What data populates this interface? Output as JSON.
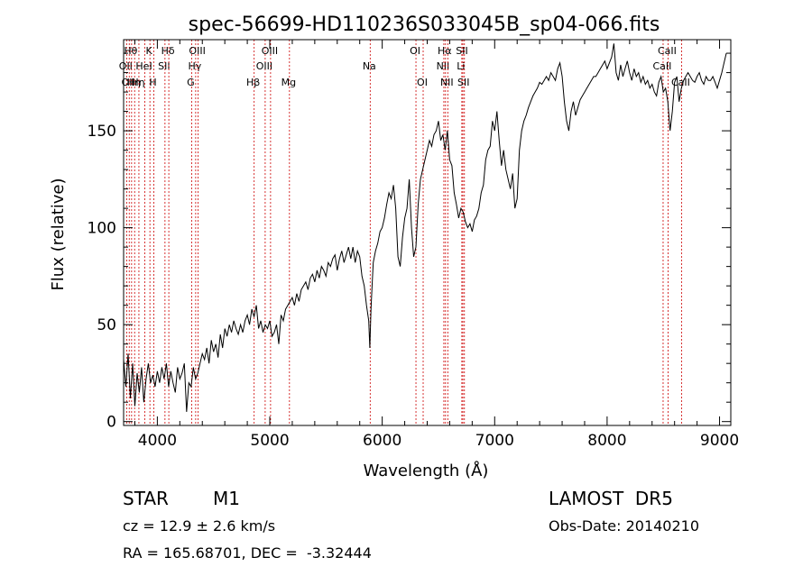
{
  "chart_data": {
    "type": "line",
    "title": "spec-56699-HD110236S033045B_sp04-066.fits",
    "xlabel": "Wavelength (Å)",
    "ylabel": "Flux (relative)",
    "xlim": [
      3700,
      9100
    ],
    "ylim": [
      -2,
      197
    ],
    "xticks": [
      4000,
      5000,
      6000,
      7000,
      8000,
      9000
    ],
    "yticks": [
      0,
      50,
      100,
      150
    ],
    "grid": false,
    "series": [
      {
        "x": [
          3700,
          3720,
          3740,
          3760,
          3780,
          3800,
          3820,
          3840,
          3860,
          3880,
          3900,
          3920,
          3940,
          3960,
          3980,
          4000,
          4020,
          4040,
          4060,
          4080,
          4100,
          4120,
          4140,
          4160,
          4180,
          4200,
          4220,
          4240,
          4260,
          4280,
          4300,
          4320,
          4340,
          4360,
          4380,
          4400,
          4420,
          4440,
          4460,
          4480,
          4500,
          4520,
          4540,
          4560,
          4580,
          4600,
          4620,
          4640,
          4660,
          4680,
          4700,
          4720,
          4740,
          4760,
          4780,
          4800,
          4820,
          4840,
          4860,
          4880,
          4900,
          4920,
          4940,
          4960,
          4980,
          5000,
          5020,
          5040,
          5060,
          5080,
          5100,
          5120,
          5140,
          5160,
          5180,
          5200,
          5220,
          5240,
          5260,
          5280,
          5300,
          5320,
          5340,
          5360,
          5380,
          5400,
          5420,
          5440,
          5460,
          5480,
          5500,
          5520,
          5540,
          5560,
          5580,
          5600,
          5620,
          5640,
          5660,
          5680,
          5700,
          5720,
          5740,
          5760,
          5780,
          5800,
          5820,
          5840,
          5860,
          5880,
          5890,
          5900,
          5910,
          5920,
          5940,
          5960,
          5980,
          6000,
          6020,
          6040,
          6060,
          6080,
          6100,
          6120,
          6140,
          6160,
          6180,
          6200,
          6220,
          6240,
          6260,
          6280,
          6300,
          6320,
          6340,
          6360,
          6380,
          6400,
          6420,
          6440,
          6460,
          6480,
          6500,
          6520,
          6540,
          6560,
          6580,
          6600,
          6620,
          6640,
          6660,
          6680,
          6700,
          6720,
          6740,
          6760,
          6780,
          6800,
          6820,
          6840,
          6860,
          6880,
          6900,
          6920,
          6940,
          6960,
          6980,
          7000,
          7020,
          7040,
          7060,
          7080,
          7100,
          7120,
          7140,
          7160,
          7180,
          7200,
          7220,
          7240,
          7260,
          7280,
          7300,
          7320,
          7340,
          7360,
          7380,
          7400,
          7420,
          7440,
          7460,
          7480,
          7500,
          7520,
          7540,
          7560,
          7580,
          7600,
          7620,
          7640,
          7660,
          7680,
          7700,
          7720,
          7740,
          7760,
          7780,
          7800,
          7820,
          7840,
          7860,
          7880,
          7900,
          7920,
          7940,
          7960,
          7980,
          8000,
          8020,
          8040,
          8060,
          8080,
          8100,
          8120,
          8140,
          8160,
          8180,
          8200,
          8220,
          8240,
          8260,
          8280,
          8300,
          8320,
          8340,
          8360,
          8380,
          8400,
          8420,
          8440,
          8460,
          8480,
          8500,
          8520,
          8540,
          8560,
          8580,
          8600,
          8620,
          8640,
          8660,
          8680,
          8700,
          8720,
          8740,
          8760,
          8780,
          8800,
          8820,
          8840,
          8860,
          8880,
          8900,
          8920,
          8940,
          8960,
          8980,
          9000,
          9020,
          9040,
          9060
        ],
        "y": [
          32,
          18,
          35,
          12,
          30,
          8,
          25,
          15,
          28,
          10,
          22,
          30,
          20,
          24,
          18,
          26,
          20,
          28,
          22,
          30,
          18,
          26,
          20,
          15,
          28,
          22,
          25,
          30,
          5,
          20,
          18,
          28,
          22,
          25,
          30,
          35,
          32,
          38,
          30,
          42,
          36,
          40,
          33,
          45,
          38,
          48,
          44,
          50,
          46,
          52,
          48,
          45,
          50,
          46,
          52,
          55,
          50,
          58,
          54,
          60,
          48,
          52,
          46,
          50,
          48,
          52,
          44,
          46,
          50,
          40,
          55,
          52,
          58,
          60,
          62,
          64,
          60,
          66,
          62,
          68,
          70,
          72,
          68,
          74,
          76,
          72,
          78,
          74,
          80,
          78,
          75,
          82,
          80,
          84,
          86,
          78,
          84,
          88,
          82,
          86,
          90,
          84,
          90,
          82,
          88,
          85,
          75,
          70,
          60,
          52,
          38,
          58,
          70,
          82,
          88,
          92,
          98,
          100,
          105,
          112,
          118,
          115,
          122,
          110,
          85,
          80,
          95,
          105,
          110,
          125,
          100,
          85,
          90,
          112,
          125,
          130,
          135,
          140,
          145,
          142,
          148,
          150,
          155,
          145,
          148,
          140,
          150,
          135,
          132,
          118,
          112,
          105,
          110,
          108,
          103,
          100,
          102,
          98,
          104,
          106,
          110,
          118,
          122,
          135,
          140,
          142,
          155,
          150,
          160,
          145,
          132,
          140,
          130,
          125,
          120,
          128,
          110,
          115,
          140,
          150,
          155,
          158,
          162,
          165,
          168,
          170,
          172,
          175,
          174,
          176,
          178,
          176,
          180,
          178,
          176,
          182,
          185,
          178,
          165,
          155,
          150,
          160,
          165,
          158,
          162,
          166,
          168,
          170,
          172,
          174,
          176,
          178,
          178,
          180,
          182,
          184,
          186,
          182,
          185,
          188,
          195,
          180,
          176,
          184,
          178,
          182,
          186,
          180,
          176,
          182,
          178,
          180,
          175,
          178,
          174,
          176,
          172,
          174,
          170,
          168,
          175,
          178,
          170,
          172,
          165,
          150,
          160,
          175,
          178,
          165,
          172,
          176,
          178,
          180,
          178,
          176,
          175,
          178,
          180,
          176,
          174,
          178,
          176,
          176,
          178,
          175,
          172,
          176,
          180,
          185,
          190
        ]
      }
    ],
    "line_markers": [
      {
        "wavelength": 3727,
        "label": "OII",
        "row": 2
      },
      {
        "wavelength": 3750,
        "label": "OII",
        "row": 3
      },
      {
        "wavelength": 3771,
        "label": "Hθ",
        "row": 1
      },
      {
        "wavelength": 3798,
        "label": "Hη",
        "row": 3
      },
      {
        "wavelength": 3836,
        "label": "Hη",
        "row": 3
      },
      {
        "wavelength": 3889,
        "label": "HeI",
        "row": 2
      },
      {
        "wavelength": 3934,
        "label": "K",
        "row": 1
      },
      {
        "wavelength": 3969,
        "label": "H",
        "row": 3
      },
      {
        "wavelength": 4068,
        "label": "SII",
        "row": 2
      },
      {
        "wavelength": 4102,
        "label": "Hδ",
        "row": 1
      },
      {
        "wavelength": 4305,
        "label": "G",
        "row": 3
      },
      {
        "wavelength": 4341,
        "label": "Hγ",
        "row": 2
      },
      {
        "wavelength": 4363,
        "label": "OIII",
        "row": 1
      },
      {
        "wavelength": 4861,
        "label": "Hβ",
        "row": 3
      },
      {
        "wavelength": 4959,
        "label": "OIII",
        "row": 2
      },
      {
        "wavelength": 5007,
        "label": "OIII",
        "row": 1
      },
      {
        "wavelength": 5175,
        "label": "Mg",
        "row": 3
      },
      {
        "wavelength": 5893,
        "label": "Na",
        "row": 2
      },
      {
        "wavelength": 6300,
        "label": "OI",
        "row": 1
      },
      {
        "wavelength": 6364,
        "label": "OI",
        "row": 3
      },
      {
        "wavelength": 6548,
        "label": "NII",
        "row": 2
      },
      {
        "wavelength": 6563,
        "label": "Hα",
        "row": 1
      },
      {
        "wavelength": 6583,
        "label": "NII",
        "row": 3
      },
      {
        "wavelength": 6708,
        "label": "Li",
        "row": 2
      },
      {
        "wavelength": 6717,
        "label": "SII",
        "row": 1
      },
      {
        "wavelength": 6731,
        "label": "SII",
        "row": 3
      },
      {
        "wavelength": 8498,
        "label": "CaII",
        "row": 2
      },
      {
        "wavelength": 8542,
        "label": "CaII",
        "row": 1
      },
      {
        "wavelength": 8662,
        "label": "CaII",
        "row": 3
      }
    ],
    "colors": {
      "line": "#000000",
      "marker": "#cc0000",
      "axis": "#000000"
    }
  },
  "info": {
    "class": "STAR",
    "subclass": "M1",
    "survey": "LAMOST  DR5",
    "cz": "cz = 12.9 ± 2.6 km/s",
    "obs_date": "Obs-Date: 20140210",
    "radec": "RA = 165.68701, DEC =  -3.32444"
  }
}
